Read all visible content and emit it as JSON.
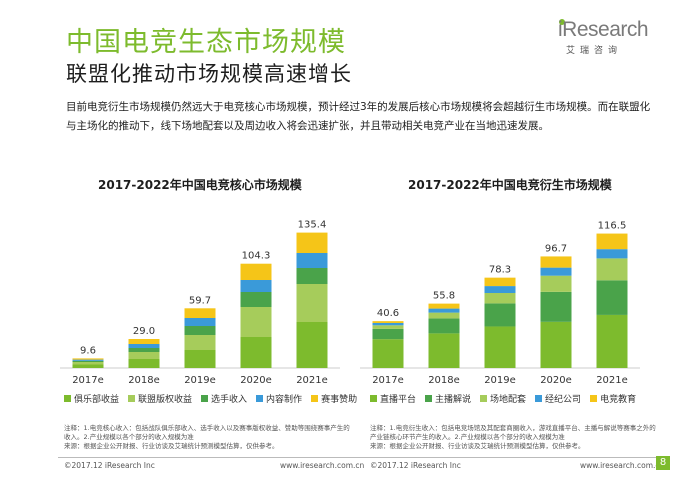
{
  "header": {
    "title": "中国电竞生态市场规模",
    "subtitle": "联盟化推动市场规模高速增长",
    "lead": "目前电竞衍生市场规模仍然远大于电竞核心市场规模，预计经过3年的发展后核心市场规模将会超越衍生市场规模。而在联盟化与主场化的推动下，线下场地配套以及周边收入将会迅速扩张，并且带动相关电竞产业在当地迅速发展。"
  },
  "logo": {
    "word": "iResearch",
    "cn": "艾瑞咨询",
    "accent": "#7dbb2d"
  },
  "chart_data": [
    {
      "type": "bar",
      "stacked": true,
      "title": "2017-2022年中国电竞核心市场规模",
      "categories": [
        "2017e",
        "2018e",
        "2019e",
        "2020e",
        "2021e"
      ],
      "totals": [
        "9.6",
        "29.0",
        "59.7",
        "104.3",
        "135.4"
      ],
      "series": [
        {
          "name": "俱乐部收益",
          "color": "#7dbb2d",
          "values": [
            3.5,
            9.0,
            18.0,
            31.0,
            46.0
          ]
        },
        {
          "name": "联盟版权收益",
          "color": "#a6cc5b",
          "values": [
            2.5,
            7.0,
            15.0,
            30.0,
            38.0
          ]
        },
        {
          "name": "选手收入",
          "color": "#4aa34a",
          "values": [
            1.2,
            4.0,
            9.0,
            15.0,
            16.0
          ]
        },
        {
          "name": "内容制作",
          "color": "#3a9ad9",
          "values": [
            1.2,
            4.0,
            8.0,
            12.0,
            15.0
          ]
        },
        {
          "name": "赛事赞助",
          "color": "#f5c518",
          "values": [
            1.2,
            5.0,
            9.7,
            16.3,
            20.4
          ]
        }
      ],
      "ylim": [
        0,
        150
      ],
      "grid": false,
      "legend": "bottom"
    },
    {
      "type": "bar",
      "stacked": true,
      "title": "2017-2022年中国电竞衍生市场规模",
      "categories": [
        "2017e",
        "2018e",
        "2019e",
        "2020e",
        "2021e"
      ],
      "totals": [
        "40.6",
        "55.8",
        "78.3",
        "96.7",
        "116.5"
      ],
      "series": [
        {
          "name": "直播平台",
          "color": "#7dbb2d",
          "values": [
            25.0,
            30.0,
            36.0,
            40.0,
            46.0
          ]
        },
        {
          "name": "主播解说",
          "color": "#4aa34a",
          "values": [
            9.0,
            13.0,
            20.0,
            26.0,
            30.0
          ]
        },
        {
          "name": "场地配套",
          "color": "#a6cc5b",
          "values": [
            3.0,
            5.0,
            9.0,
            14.0,
            19.0
          ]
        },
        {
          "name": "经纪公司",
          "color": "#3a9ad9",
          "values": [
            2.0,
            3.5,
            6.0,
            7.0,
            8.0
          ]
        },
        {
          "name": "电竞教育",
          "color": "#f5c518",
          "values": [
            1.6,
            4.3,
            7.3,
            9.7,
            13.5
          ]
        }
      ],
      "ylim": [
        0,
        130
      ],
      "grid": false,
      "legend": "bottom"
    }
  ],
  "notes": {
    "left": "注释：1.电竞核心收入：包括战队俱乐部收入、选手收入以及赛事版权收益、赞助等围绕赛事产生的收入。2.产业规模以各个部分的收入规模为准\n来源：根据企业公开财报、行业访谈及艾瑞统计预测模型估算，仅供参考。",
    "right": "注释：1.电竞衍生收入：包括电竞场馆及其配套商圈收入，游戏直播平台、主播与解说等赛事之外的产业链核心环节产生的收入。2.产业规模以各个部分的收入规模为准\n来源：根据企业公开财报、行业访谈及艾瑞统计预测模型估算，仅供参考。"
  },
  "footer": {
    "copyright": "©2017.12 iResearch Inc",
    "url": "www.iresearch.com.cn",
    "page": "8"
  }
}
